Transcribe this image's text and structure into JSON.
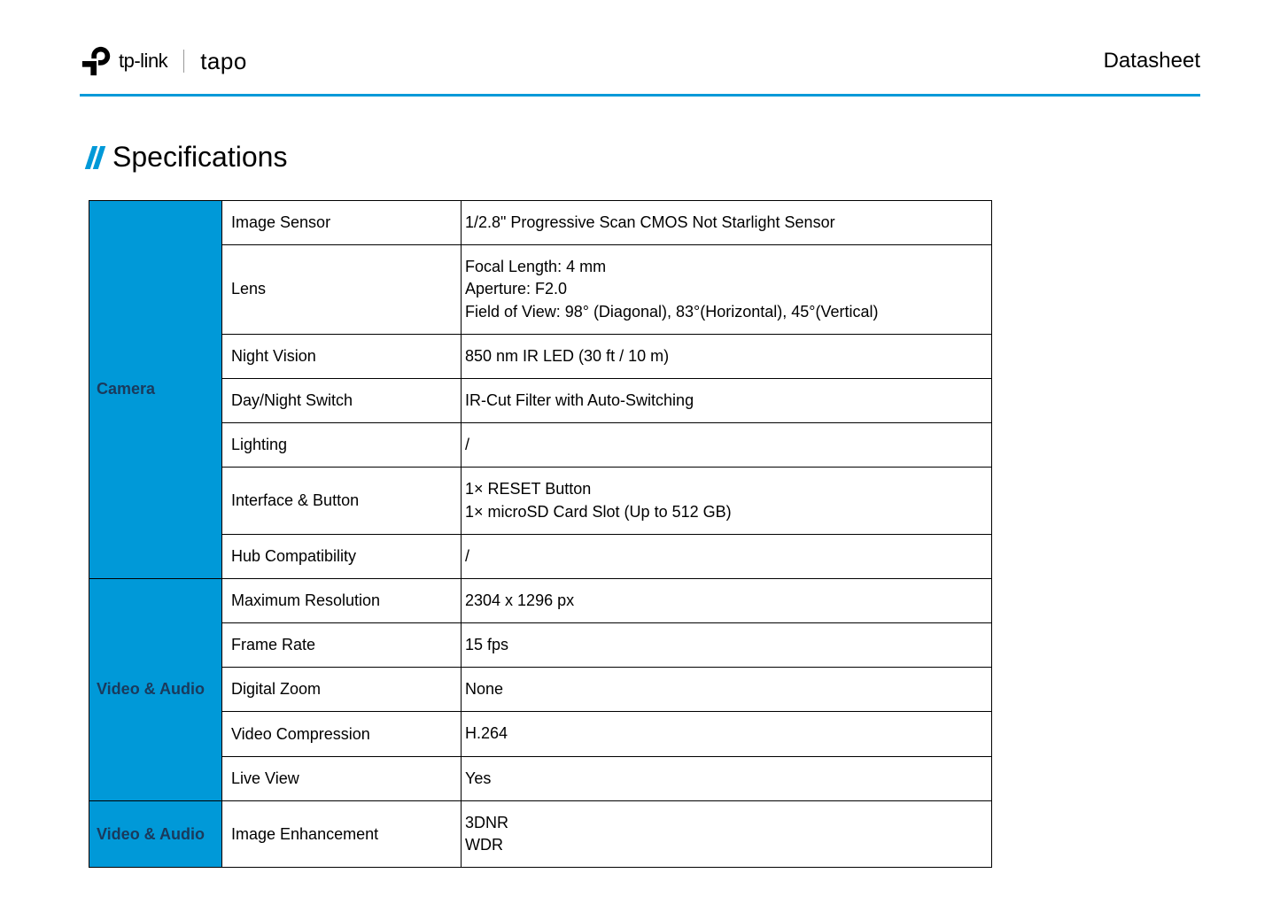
{
  "header": {
    "brand_primary": "tp-link",
    "brand_secondary": "tapo",
    "doc_type": "Datasheet"
  },
  "section": {
    "title": "Specifications"
  },
  "colors": {
    "accent": "#0099d8",
    "category_text": "#1a3a5c",
    "border": "#000000",
    "background": "#ffffff"
  },
  "table": {
    "groups": [
      {
        "category": "Camera",
        "rows": [
          {
            "label": "Image Sensor",
            "value": "1/2.8\" Progressive Scan CMOS Not Starlight Sensor"
          },
          {
            "label": "Lens",
            "value": "Focal Length: 4 mm\nAperture: F2.0\nField of View: 98° (Diagonal), 83°(Horizontal), 45°(Vertical)"
          },
          {
            "label": "Night Vision",
            "value": "850 nm IR LED (30 ft / 10 m)"
          },
          {
            "label": "Day/Night Switch",
            "value": "IR-Cut Filter with Auto-Switching"
          },
          {
            "label": "Lighting",
            "value": "/"
          },
          {
            "label": "Interface & Button",
            "value": "1× RESET Button\n1× microSD Card Slot (Up to 512 GB)"
          },
          {
            "label": "Hub Compatibility",
            "value": "/"
          }
        ]
      },
      {
        "category": "Video & Audio",
        "rows": [
          {
            "label": "Maximum Resolution",
            "value": "2304 x 1296 px"
          },
          {
            "label": "Frame Rate",
            "value": "15 fps"
          },
          {
            "label": "Digital Zoom",
            "value": "None"
          },
          {
            "label": "Video Compression",
            "value": "H.264"
          },
          {
            "label": "Live View",
            "value": "Yes"
          }
        ]
      },
      {
        "category": "Video & Audio",
        "rows": [
          {
            "label": "Image Enhancement",
            "value": "3DNR\nWDR"
          }
        ]
      }
    ]
  }
}
